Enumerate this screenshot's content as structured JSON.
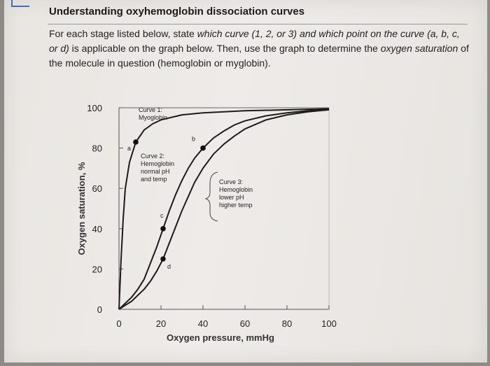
{
  "heading": "Understanding oxyhemoglobin dissociation curves",
  "instructions": {
    "part1": "For each stage listed below, state ",
    "em1": "which curve (1, 2, or 3) and which point on the curve (a, b, c, or d)",
    "part2": " is applicable on the graph below. Then, use the graph to determine the ",
    "em2": "oxygen saturation",
    "part3": " of the molecule in question (hemoglobin or myglobin)."
  },
  "chart_data": {
    "type": "line",
    "xlabel": "Oxygen pressure, mmHg",
    "ylabel": "Oxygen saturation, %",
    "xlim": [
      0,
      100
    ],
    "ylim": [
      0,
      100
    ],
    "xticks": [
      "0",
      "20",
      "40",
      "60",
      "80",
      "100"
    ],
    "yticks": [
      "0",
      "20",
      "40",
      "60",
      "80",
      "100"
    ],
    "series": [
      {
        "name": "Curve 1: Myoglobin",
        "label_lines": [
          "Curve 1:",
          "Myoglobin"
        ],
        "points": [
          [
            0,
            0
          ],
          [
            1,
            25
          ],
          [
            2,
            45
          ],
          [
            3,
            60
          ],
          [
            5,
            73
          ],
          [
            8,
            83
          ],
          [
            12,
            89
          ],
          [
            16,
            92
          ],
          [
            20,
            94
          ],
          [
            30,
            96.5
          ],
          [
            40,
            97.5
          ],
          [
            60,
            98.5
          ],
          [
            80,
            99
          ],
          [
            100,
            99.5
          ]
        ]
      },
      {
        "name": "Curve 2: Hemoglobin normal pH and temp",
        "label_lines": [
          "Curve 2:",
          "Hemoglobin",
          "normal pH",
          "and temp"
        ],
        "points": [
          [
            0,
            0
          ],
          [
            3,
            3
          ],
          [
            6,
            6
          ],
          [
            9,
            10
          ],
          [
            12,
            15
          ],
          [
            15,
            23
          ],
          [
            18,
            31
          ],
          [
            21,
            40
          ],
          [
            24,
            49
          ],
          [
            27,
            57
          ],
          [
            30,
            64
          ],
          [
            33,
            70
          ],
          [
            36,
            75
          ],
          [
            40,
            80
          ],
          [
            45,
            85
          ],
          [
            50,
            88.5
          ],
          [
            55,
            91.5
          ],
          [
            60,
            93.5
          ],
          [
            70,
            96
          ],
          [
            80,
            97.5
          ],
          [
            90,
            98.5
          ],
          [
            100,
            99
          ]
        ]
      },
      {
        "name": "Curve 3: Hemoglobin lower pH higher temp",
        "label_lines": [
          "Curve 3:",
          "Hemoglobin",
          "lower pH",
          "higher temp"
        ],
        "points": [
          [
            0,
            0
          ],
          [
            3,
            2
          ],
          [
            6,
            4
          ],
          [
            9,
            7
          ],
          [
            12,
            10
          ],
          [
            15,
            14
          ],
          [
            18,
            19
          ],
          [
            21,
            25
          ],
          [
            24,
            33
          ],
          [
            27,
            41
          ],
          [
            30,
            49
          ],
          [
            33,
            56
          ],
          [
            36,
            63
          ],
          [
            40,
            70
          ],
          [
            45,
            77
          ],
          [
            50,
            82
          ],
          [
            55,
            86
          ],
          [
            60,
            89.5
          ],
          [
            70,
            94
          ],
          [
            80,
            96.5
          ],
          [
            90,
            98
          ],
          [
            100,
            99
          ]
        ]
      }
    ],
    "points": [
      {
        "label": "a",
        "x": 8,
        "y": 83
      },
      {
        "label": "b",
        "x": 40,
        "y": 80
      },
      {
        "label": "c",
        "x": 21,
        "y": 40
      },
      {
        "label": "d",
        "x": 21,
        "y": 25
      }
    ],
    "grid": false
  }
}
